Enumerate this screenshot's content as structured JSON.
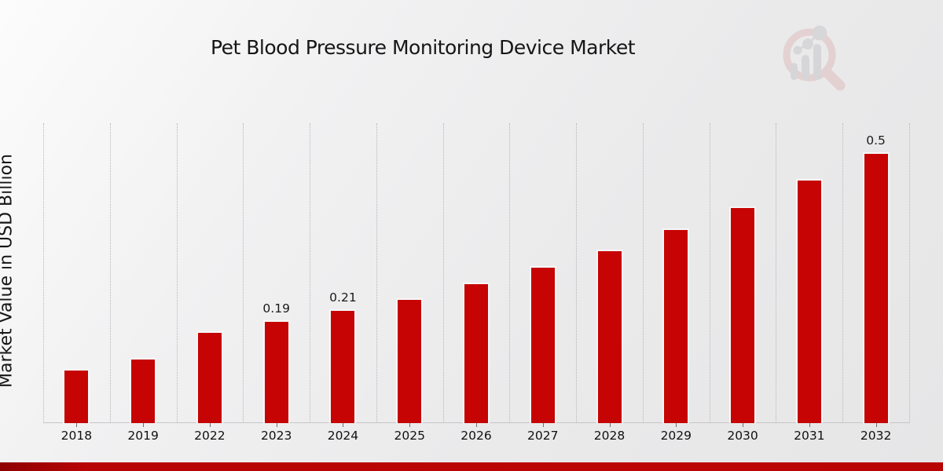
{
  "page": {
    "footer_accent_color": "#b70404",
    "background_style": "light-gray-gradient"
  },
  "logo": {
    "name": "magnifier-bar-chart-watermark",
    "ring_color": "#dfb9b9",
    "glyph_color": "#c3c3c8"
  },
  "chart_data": {
    "type": "bar",
    "title": "Pet Blood Pressure Monitoring Device Market",
    "xlabel": "",
    "ylabel": "Market Value in USD Billion",
    "categories": [
      "2018",
      "2019",
      "2022",
      "2023",
      "2024",
      "2025",
      "2026",
      "2027",
      "2028",
      "2029",
      "2030",
      "2031",
      "2032"
    ],
    "values": [
      0.1,
      0.12,
      0.17,
      0.19,
      0.21,
      0.23,
      0.26,
      0.29,
      0.32,
      0.36,
      0.4,
      0.45,
      0.5
    ],
    "bar_labels": [
      "",
      "",
      "",
      "0.19",
      "0.21",
      "",
      "",
      "",
      "",
      "",
      "",
      "",
      "0.5"
    ],
    "bar_color": "#c60404",
    "bar_outline_color": "#f7f7f7",
    "ylim": [
      0,
      0.554
    ],
    "grid": "vertical-dotted",
    "legend": "none",
    "axis_text_color": "#111111"
  }
}
